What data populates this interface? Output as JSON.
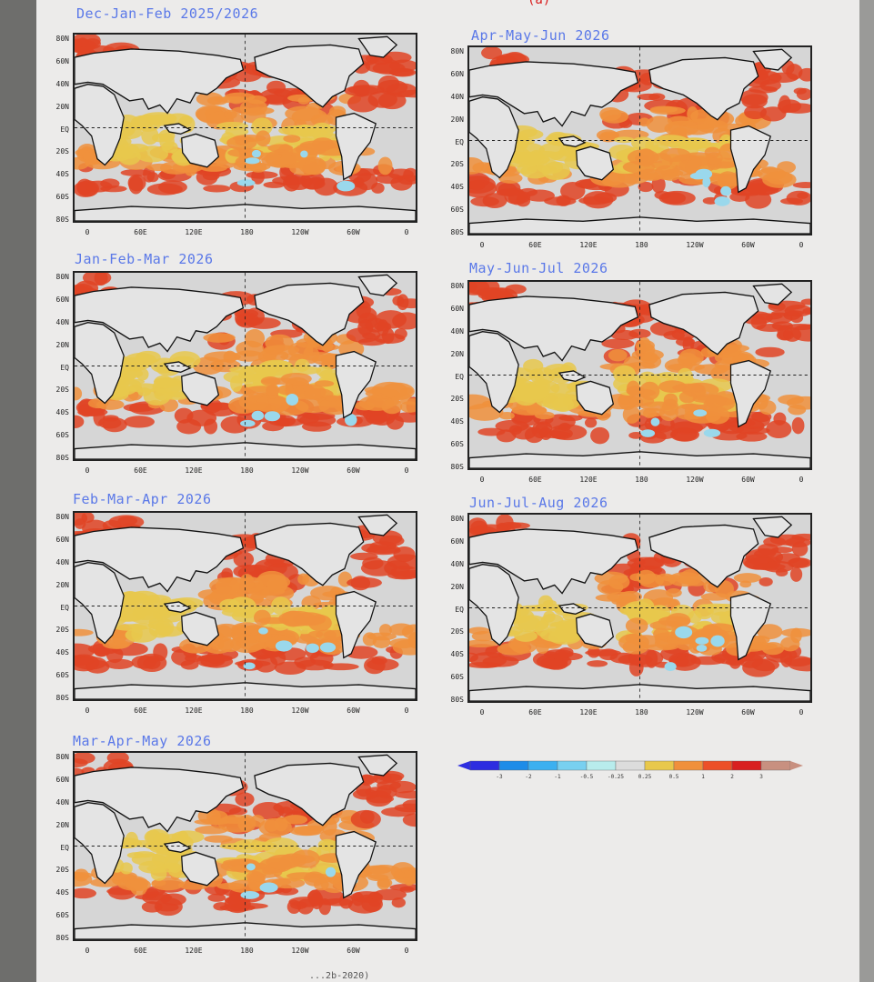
{
  "page_title_fragment": "(a)",
  "panels": [
    {
      "title": "Dec-Jan-Feb 2025/2026"
    },
    {
      "title": "Apr-May-Jun 2026"
    },
    {
      "title": "Jan-Feb-Mar 2026"
    },
    {
      "title": "May-Jun-Jul 2026"
    },
    {
      "title": "Feb-Mar-Apr 2026"
    },
    {
      "title": "Jun-Jul-Aug 2026"
    },
    {
      "title": "Mar-Apr-May 2026"
    }
  ],
  "lat_labels": [
    "80N",
    "60N",
    "40N",
    "20N",
    "EQ",
    "20S",
    "40S",
    "60S",
    "80S"
  ],
  "lon_labels": [
    "0",
    "60E",
    "120E",
    "180",
    "120W",
    "60W",
    "0"
  ],
  "legend": {
    "ticks": [
      "-3",
      "-2",
      "-1",
      "-0.5",
      "-0.25",
      "0.25",
      "0.5",
      "1",
      "2",
      "3"
    ],
    "colors": [
      "#2d2de0",
      "#1e8ce8",
      "#3cb0f0",
      "#78d0f0",
      "#b8ecec",
      "#dcdcdc",
      "#e8c84c",
      "#f0903c",
      "#ec5028",
      "#d82020",
      "#c89080"
    ]
  },
  "bottom_note": "...2b-2020)",
  "colors": {
    "land": "#e4e4e4",
    "ocean_neutral": "#d6d6d6",
    "weak_pos": "#e8c84c",
    "mid_pos": "#f0903c",
    "strong_pos": "#e04424",
    "neg": "#9ad8ec"
  }
}
